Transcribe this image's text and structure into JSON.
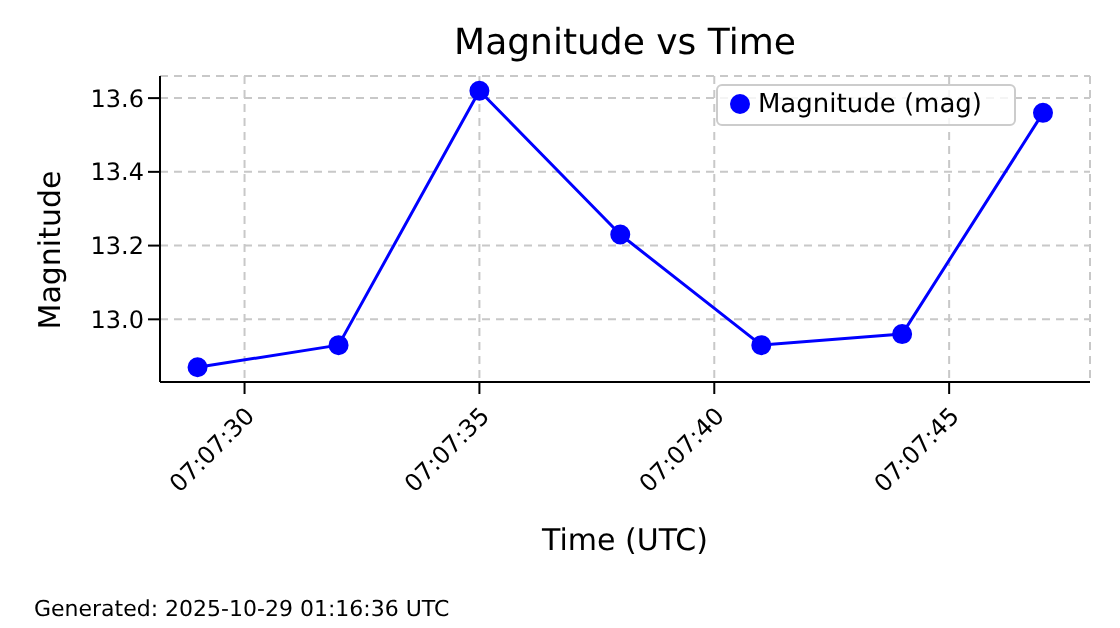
{
  "chart_data": {
    "type": "line",
    "title": "Magnitude vs Time",
    "xlabel": "Time (UTC)",
    "ylabel": "Magnitude",
    "x": [
      7.124722,
      7.125556,
      7.126389,
      7.127222,
      7.128056,
      7.128889,
      7.129722
    ],
    "series": [
      {
        "name": "Magnitude (mag)",
        "color": "#0000ff",
        "values": [
          12.87,
          12.93,
          13.62,
          13.23,
          12.93,
          12.96,
          13.56
        ]
      }
    ],
    "xlim": [
      7.1245,
      7.13
    ],
    "xticks": [
      {
        "value": 7.125,
        "label": "07:07:30"
      },
      {
        "value": 7.126389,
        "label": "07:07:35"
      },
      {
        "value": 7.127778,
        "label": "07:07:40"
      },
      {
        "value": 7.129167,
        "label": "07:07:45"
      }
    ],
    "ylim": [
      12.83,
      13.66
    ],
    "yticks": [
      {
        "value": 13.0,
        "label": "13.0"
      },
      {
        "value": 13.2,
        "label": "13.2"
      },
      {
        "value": 13.4,
        "label": "13.4"
      },
      {
        "value": 13.6,
        "label": "13.6"
      }
    ],
    "grid": true,
    "legend": "top right",
    "marker": "circle",
    "line_style": "solid",
    "annotations": [
      "Generated: 2025-10-29 01:16:36 UTC"
    ]
  }
}
